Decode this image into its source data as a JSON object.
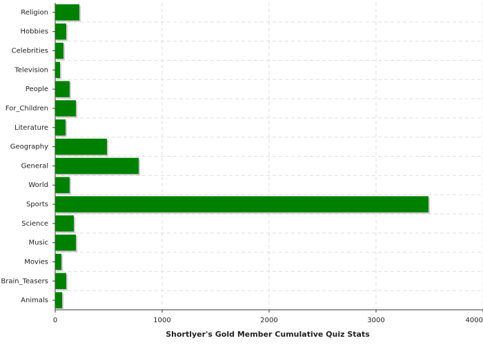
{
  "chart_data": {
    "type": "bar",
    "orientation": "horizontal",
    "xlabel": "Shortlyer's Gold Member Cumulative Quiz Stats",
    "categories": [
      "Religion",
      "Hobbies",
      "Celebrities",
      "Television",
      "People",
      "For_Children",
      "Literature",
      "Geography",
      "General",
      "World",
      "Sports",
      "Science",
      "Music",
      "Movies",
      "Brain_Teasers",
      "Animals"
    ],
    "values": [
      226,
      103,
      77,
      45,
      135,
      194,
      97,
      484,
      781,
      135,
      3490,
      174,
      194,
      58,
      103,
      65
    ],
    "color": "#008000",
    "xlim": [
      0,
      4000
    ],
    "xticks": [
      0,
      1000,
      2000,
      3000,
      4000
    ],
    "grid": true
  }
}
